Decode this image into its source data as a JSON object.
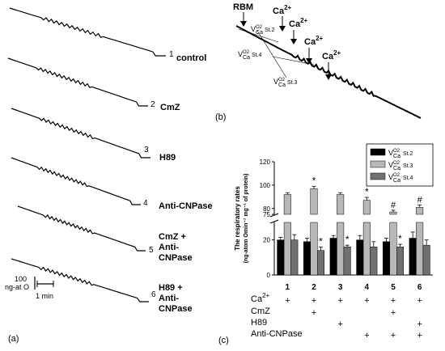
{
  "panel_a": {
    "letter": "(a)",
    "traces": [
      {
        "num": "1",
        "label": "control"
      },
      {
        "num": "2",
        "label": "CmZ"
      },
      {
        "num": "3",
        "label": "H89"
      },
      {
        "num": "4",
        "label": "Anti-CNPase"
      },
      {
        "num": "5",
        "lines": [
          "CmZ +",
          "Anti-",
          "CNPase"
        ]
      },
      {
        "num": "6",
        "lines": [
          "H89 +",
          "Anti-",
          "CNPase"
        ]
      }
    ],
    "scale_y_lines": [
      "100",
      "ng-at O"
    ],
    "scale_x": "1 min"
  },
  "panel_b": {
    "letter": "(b)",
    "rbm": "RBM",
    "ca": [
      "Ca",
      "Ca",
      "Ca",
      "Ca"
    ],
    "ca_charge": "2+",
    "v": "V",
    "v_sup": "O2",
    "v_sub": "Ca",
    "states": [
      "St.2",
      "St.3",
      "St.4"
    ]
  },
  "chart_data": {
    "type": "bar",
    "categories": [
      "1",
      "2",
      "3",
      "4",
      "5",
      "6"
    ],
    "ylabel_lines": [
      "The respiratory rates",
      "(ng-atom Omin⁻¹ mg⁻¹ of protein)"
    ],
    "ylim": [
      0,
      120
    ],
    "y_axis_break": [
      30,
      75
    ],
    "yticks": [
      0,
      20,
      75,
      80,
      100,
      120
    ],
    "series": [
      {
        "name": "St.2",
        "color": "#000000",
        "values": [
          20,
          19,
          21,
          20,
          19,
          21
        ],
        "errors": [
          1.5,
          2,
          1.5,
          2.5,
          2,
          3.5
        ]
      },
      {
        "name": "St.3",
        "color": "#b8b8b8",
        "values": [
          92,
          97,
          92,
          87,
          77,
          81
        ],
        "errors": [
          1.5,
          2,
          1.5,
          2.5,
          1.5,
          2
        ]
      },
      {
        "name": "St.4",
        "color": "#707070",
        "values": [
          20,
          14,
          16,
          16,
          16,
          17
        ],
        "errors": [
          3,
          2,
          1,
          3,
          1.5,
          3
        ]
      }
    ],
    "markers": [
      {
        "series": 1,
        "index": 1,
        "text": "*"
      },
      {
        "series": 2,
        "index": 1,
        "text": "*"
      },
      {
        "series": 2,
        "index": 2,
        "text": "*"
      },
      {
        "series": 1,
        "index": 3,
        "text": "*"
      },
      {
        "series": 1,
        "index": 4,
        "text": "#"
      },
      {
        "series": 2,
        "index": 4,
        "text": "*"
      },
      {
        "series": 1,
        "index": 5,
        "text": "#"
      }
    ],
    "treatments": [
      {
        "label": "Ca2+",
        "plus": [
          true,
          true,
          true,
          true,
          true,
          true
        ]
      },
      {
        "label": "CmZ",
        "plus": [
          false,
          true,
          false,
          false,
          true,
          false
        ]
      },
      {
        "label": "H89",
        "plus": [
          false,
          false,
          true,
          false,
          false,
          true
        ]
      },
      {
        "label": "Anti-CNPase",
        "plus": [
          false,
          false,
          false,
          true,
          true,
          true
        ]
      }
    ],
    "legend_position": "top-right"
  },
  "panel_c": {
    "letter": "(c)",
    "treatment_labels": [
      "Ca",
      "CmZ",
      "H89",
      "Anti-CNPase"
    ],
    "ca_charge": "2+",
    "plus": "+"
  }
}
